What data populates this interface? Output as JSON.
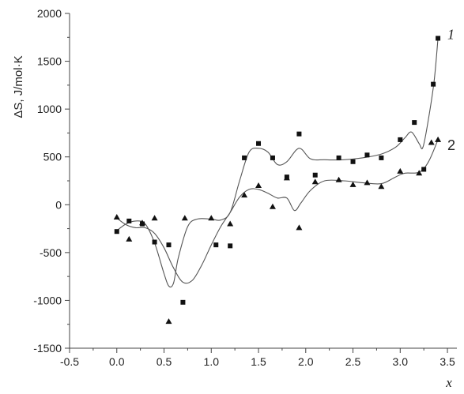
{
  "chart_data": {
    "type": "scatter",
    "title": "",
    "xlabel": "x",
    "ylabel": "ΔS, J/mol·K",
    "xlim": [
      -0.5,
      3.6
    ],
    "ylim": [
      -1500,
      2000
    ],
    "xticks": [
      "-0.5",
      "0.0",
      "0.5",
      "1.0",
      "1.5",
      "2.0",
      "2.5",
      "3.0",
      "3.5"
    ],
    "yticks": [
      "-1500",
      "-1000",
      "-500",
      "0",
      "500",
      "1000",
      "1500",
      "2000"
    ],
    "grid": false,
    "series": [
      {
        "name": "1",
        "marker": "square",
        "points": [
          [
            0.0,
            -280
          ],
          [
            0.13,
            -170
          ],
          [
            0.27,
            -200
          ],
          [
            0.4,
            -390
          ],
          [
            0.55,
            -420
          ],
          [
            0.7,
            -1020
          ],
          [
            1.05,
            -420
          ],
          [
            1.2,
            -430
          ],
          [
            1.35,
            490
          ],
          [
            1.5,
            640
          ],
          [
            1.65,
            490
          ],
          [
            1.8,
            290
          ],
          [
            1.93,
            740
          ],
          [
            2.1,
            310
          ],
          [
            2.35,
            490
          ],
          [
            2.5,
            450
          ],
          [
            2.65,
            520
          ],
          [
            2.8,
            490
          ],
          [
            3.0,
            680
          ],
          [
            3.15,
            860
          ],
          [
            3.25,
            370
          ],
          [
            3.35,
            1260
          ],
          [
            3.4,
            1740
          ]
        ],
        "curve": [
          [
            0.0,
            -270
          ],
          [
            0.1,
            -200
          ],
          [
            0.2,
            -170
          ],
          [
            0.3,
            -200
          ],
          [
            0.4,
            -400
          ],
          [
            0.5,
            -720
          ],
          [
            0.55,
            -850
          ],
          [
            0.6,
            -820
          ],
          [
            0.65,
            -560
          ],
          [
            0.75,
            -230
          ],
          [
            0.85,
            -150
          ],
          [
            1.0,
            -150
          ],
          [
            1.1,
            -160
          ],
          [
            1.2,
            -80
          ],
          [
            1.3,
            250
          ],
          [
            1.4,
            550
          ],
          [
            1.5,
            590
          ],
          [
            1.6,
            550
          ],
          [
            1.7,
            420
          ],
          [
            1.8,
            450
          ],
          [
            1.93,
            590
          ],
          [
            2.05,
            480
          ],
          [
            2.2,
            470
          ],
          [
            2.4,
            470
          ],
          [
            2.6,
            490
          ],
          [
            2.8,
            530
          ],
          [
            2.95,
            600
          ],
          [
            3.05,
            700
          ],
          [
            3.12,
            760
          ],
          [
            3.2,
            640
          ],
          [
            3.24,
            600
          ],
          [
            3.3,
            900
          ],
          [
            3.36,
            1300
          ],
          [
            3.4,
            1740
          ]
        ]
      },
      {
        "name": "2",
        "marker": "triangle",
        "points": [
          [
            0.0,
            -130
          ],
          [
            0.13,
            -360
          ],
          [
            0.27,
            -190
          ],
          [
            0.4,
            -140
          ],
          [
            0.55,
            -1220
          ],
          [
            0.72,
            -140
          ],
          [
            1.0,
            -140
          ],
          [
            1.2,
            -200
          ],
          [
            1.35,
            100
          ],
          [
            1.5,
            200
          ],
          [
            1.65,
            -20
          ],
          [
            1.8,
            280
          ],
          [
            1.93,
            -240
          ],
          [
            2.1,
            240
          ],
          [
            2.35,
            260
          ],
          [
            2.5,
            210
          ],
          [
            2.65,
            230
          ],
          [
            2.8,
            190
          ],
          [
            3.0,
            350
          ],
          [
            3.2,
            330
          ],
          [
            3.33,
            650
          ],
          [
            3.4,
            680
          ]
        ],
        "curve": [
          [
            0.0,
            -140
          ],
          [
            0.1,
            -210
          ],
          [
            0.2,
            -240
          ],
          [
            0.3,
            -240
          ],
          [
            0.4,
            -300
          ],
          [
            0.5,
            -450
          ],
          [
            0.6,
            -660
          ],
          [
            0.7,
            -810
          ],
          [
            0.8,
            -790
          ],
          [
            0.9,
            -630
          ],
          [
            1.0,
            -420
          ],
          [
            1.1,
            -230
          ],
          [
            1.2,
            -80
          ],
          [
            1.3,
            80
          ],
          [
            1.4,
            160
          ],
          [
            1.5,
            160
          ],
          [
            1.6,
            120
          ],
          [
            1.7,
            70
          ],
          [
            1.8,
            70
          ],
          [
            1.88,
            -60
          ],
          [
            1.95,
            20
          ],
          [
            2.05,
            150
          ],
          [
            2.2,
            250
          ],
          [
            2.4,
            250
          ],
          [
            2.6,
            230
          ],
          [
            2.8,
            220
          ],
          [
            2.95,
            290
          ],
          [
            3.05,
            330
          ],
          [
            3.2,
            340
          ],
          [
            3.3,
            450
          ],
          [
            3.4,
            680
          ]
        ]
      }
    ],
    "annotations": [
      {
        "text": "1",
        "x": 3.5,
        "y": 1780,
        "style": "italic"
      },
      {
        "text": "2",
        "x": 3.5,
        "y": 620,
        "style": "normal"
      }
    ]
  }
}
